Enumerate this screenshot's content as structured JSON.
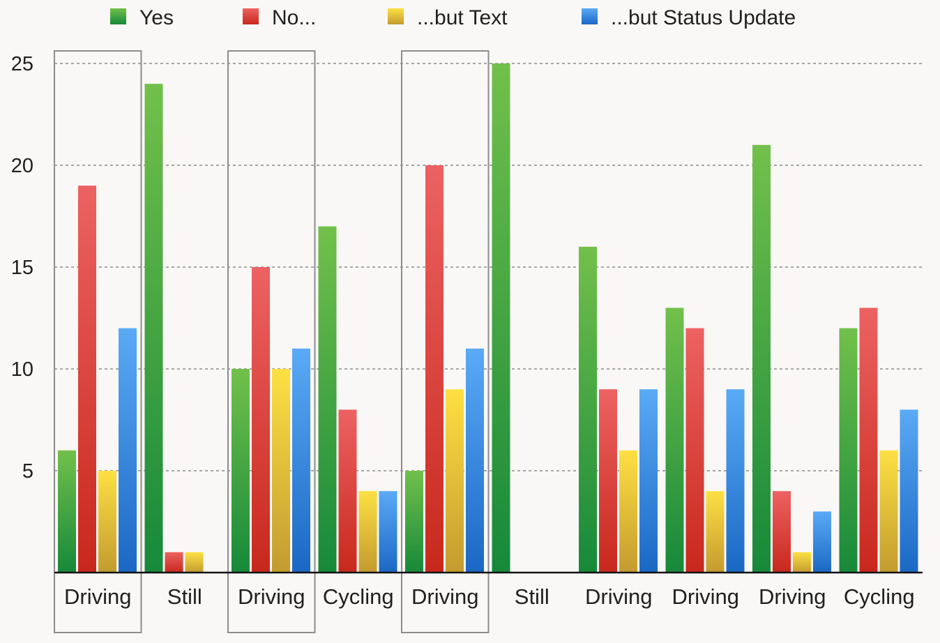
{
  "chart_data": {
    "type": "bar",
    "categories": [
      "Driving",
      "Still",
      "Driving",
      "Cycling",
      "Driving",
      "Still",
      "Driving",
      "Driving",
      "Driving",
      "Cycling"
    ],
    "series": [
      {
        "name": "Yes",
        "color": "green",
        "values": [
          6,
          24,
          10,
          17,
          5,
          25,
          16,
          13,
          21,
          12
        ]
      },
      {
        "name": "No...",
        "color": "red",
        "values": [
          19,
          1,
          15,
          8,
          20,
          0,
          9,
          12,
          4,
          13
        ]
      },
      {
        "name": "...but Text",
        "color": "yellow",
        "values": [
          5,
          1,
          10,
          4,
          9,
          0,
          6,
          4,
          1,
          6
        ]
      },
      {
        "name": "...but Status Update",
        "color": "blue",
        "values": [
          12,
          0,
          11,
          4,
          11,
          0,
          9,
          9,
          3,
          8
        ]
      }
    ],
    "yticks": [
      5,
      10,
      15,
      20,
      25
    ],
    "ylim": [
      0,
      25
    ],
    "grid": true,
    "legend_position": "top",
    "highlighted_categories": [
      0,
      2,
      4
    ],
    "title": "",
    "xlabel": "",
    "ylabel": ""
  }
}
